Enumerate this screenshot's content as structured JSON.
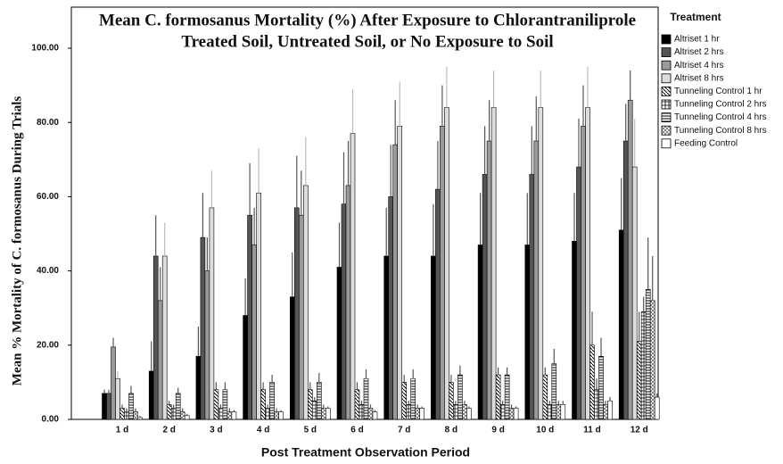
{
  "chart_data": {
    "type": "bar",
    "title": [
      "Mean C. formosanus Mortality (%) After Exposure to Chlorantraniliprole",
      "Treated Soil, Untreated Soil, or No Exposure to Soil"
    ],
    "x_label": "Post Treatment Observation Period",
    "y_label": "Mean % Mortality of C. formosanus During Trials",
    "legend_title": "Treatment",
    "categories": [
      "1 d",
      "2 d",
      "3 d",
      "4 d",
      "5 d",
      "6 d",
      "7 d",
      "8 d",
      "9 d",
      "10 d",
      "11 d",
      "12 d"
    ],
    "ylim": [
      0,
      100
    ],
    "yticks": [
      {
        "value": 0,
        "label": "0.00"
      },
      {
        "value": 20,
        "label": "20.00"
      },
      {
        "value": 40,
        "label": "40.00"
      },
      {
        "value": 60,
        "label": "60.00"
      },
      {
        "value": 80,
        "label": "80.00"
      },
      {
        "value": 100,
        "label": "100.00"
      }
    ],
    "series": [
      {
        "name": "Altriset 1 hr",
        "color": "#000000",
        "pattern": "solid",
        "values": [
          7,
          13,
          17,
          28,
          33,
          41,
          44,
          44,
          47,
          47,
          48,
          51
        ],
        "errors": [
          1,
          8,
          8,
          10,
          12,
          12,
          13,
          14,
          14,
          14,
          13,
          14
        ]
      },
      {
        "name": "Altriset 2 hrs",
        "color": "#555555",
        "pattern": "solid",
        "values": [
          7,
          44,
          49,
          55,
          57,
          58,
          60,
          62,
          66,
          66,
          68,
          75
        ],
        "errors": [
          1,
          11,
          12,
          14,
          14,
          14,
          14,
          13,
          13,
          13,
          13,
          10
        ]
      },
      {
        "name": "Altriset 4 hrs",
        "color": "#9a9a9a",
        "pattern": "solid",
        "values": [
          19.5,
          32,
          40,
          47,
          55,
          63,
          74,
          79,
          75,
          75,
          79,
          86
        ],
        "errors": [
          2.5,
          9,
          9,
          10,
          12,
          12,
          12,
          11,
          11,
          12,
          11,
          8
        ]
      },
      {
        "name": "Altriset 8 hrs",
        "color": "#dddddd",
        "pattern": "solid",
        "values": [
          11,
          44,
          57,
          61,
          63,
          77,
          79,
          84,
          84,
          84,
          84,
          68
        ],
        "errors": [
          2,
          9,
          10,
          12,
          13,
          12,
          12,
          11,
          10,
          10,
          11,
          13
        ]
      },
      {
        "name": "Tunneling Control 1 hr",
        "color": "#000000",
        "pattern": "diagonal",
        "values": [
          3,
          4,
          8,
          8,
          8,
          8,
          10,
          10,
          12,
          12,
          20,
          21
        ],
        "errors": [
          1,
          1,
          2,
          2,
          2,
          2,
          2,
          2,
          2,
          2,
          9,
          8
        ]
      },
      {
        "name": "Tunneling Control 2 hrs",
        "color": "#000000",
        "pattern": "plus",
        "values": [
          2,
          3,
          3,
          3,
          5,
          4,
          4,
          4,
          4,
          4,
          8,
          29
        ],
        "errors": [
          1,
          1,
          1,
          1,
          1,
          1,
          1,
          1,
          1,
          1,
          3,
          4
        ]
      },
      {
        "name": "Tunneling Control 4 hrs",
        "color": "#000000",
        "pattern": "horizontal",
        "values": [
          7,
          7,
          8,
          10,
          10,
          11,
          11,
          12,
          12,
          15,
          17,
          35
        ],
        "errors": [
          2,
          1.5,
          2,
          2,
          2.5,
          2.5,
          2.5,
          2.5,
          2,
          4,
          5,
          14
        ]
      },
      {
        "name": "Tunneling Control 8 hrs",
        "color": "#000000",
        "pattern": "cross",
        "values": [
          2,
          2,
          2,
          2,
          3,
          3,
          3,
          4,
          3,
          4,
          4,
          32
        ],
        "errors": [
          1,
          1,
          1,
          1,
          1,
          1,
          1,
          1,
          1,
          1,
          1,
          12
        ]
      },
      {
        "name": "Feeding Control",
        "color": "#ffffff",
        "pattern": "solid",
        "values": [
          0.5,
          1,
          2,
          2,
          3,
          2,
          3,
          3,
          3,
          4,
          5,
          6
        ],
        "errors": [
          0.5,
          0.5,
          0.5,
          0.5,
          0.5,
          0.5,
          0.5,
          0.5,
          0.5,
          1,
          1,
          1
        ]
      }
    ]
  }
}
